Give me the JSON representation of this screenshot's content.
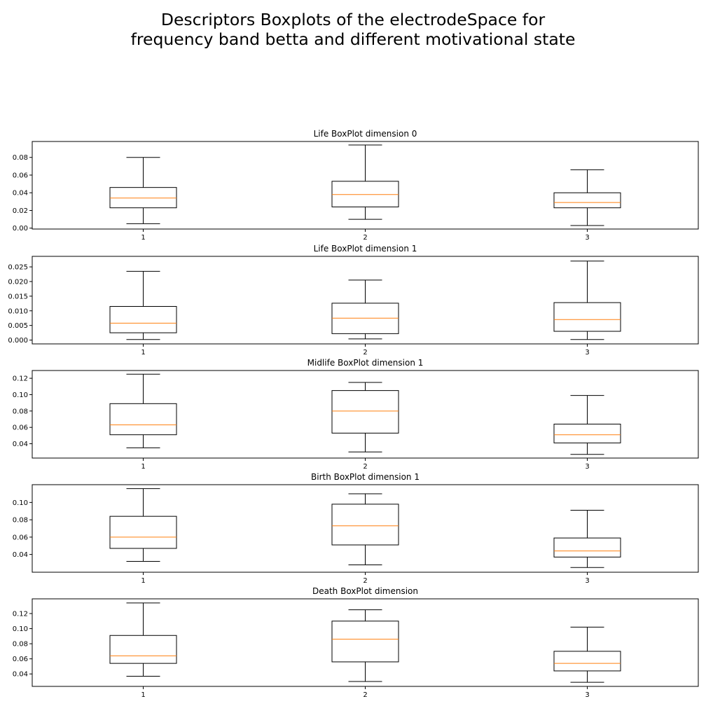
{
  "figure": {
    "title_line1": "Descriptors Boxplots of the electrodeSpace for",
    "title_line2": "frequency band betta and different motivational state"
  },
  "colors": {
    "box": "#000000",
    "median": "#ff7f0e",
    "background": "#ffffff"
  },
  "chart_data": [
    {
      "type": "boxplot",
      "title": "Life BoxPlot dimension 0",
      "categories": [
        "1",
        "2",
        "3"
      ],
      "ylim": [
        -0.001,
        0.098
      ],
      "yticks": [
        0.0,
        0.02,
        0.04,
        0.06,
        0.08
      ],
      "ytick_labels": [
        "0.00",
        "0.02",
        "0.04",
        "0.06",
        "0.08"
      ],
      "boxes": [
        {
          "whislo": 0.005,
          "q1": 0.023,
          "med": 0.034,
          "q3": 0.046,
          "whishi": 0.08
        },
        {
          "whislo": 0.01,
          "q1": 0.024,
          "med": 0.038,
          "q3": 0.053,
          "whishi": 0.094
        },
        {
          "whislo": 0.003,
          "q1": 0.023,
          "med": 0.029,
          "q3": 0.04,
          "whishi": 0.066
        }
      ]
    },
    {
      "type": "boxplot",
      "title": "Life BoxPlot dimension 1",
      "categories": [
        "1",
        "2",
        "3"
      ],
      "ylim": [
        -0.0013,
        0.0286
      ],
      "yticks": [
        0.0,
        0.005,
        0.01,
        0.015,
        0.02,
        0.025
      ],
      "ytick_labels": [
        "0.000",
        "0.005",
        "0.010",
        "0.015",
        "0.020",
        "0.025"
      ],
      "boxes": [
        {
          "whislo": 0.0002,
          "q1": 0.0025,
          "med": 0.0058,
          "q3": 0.0115,
          "whishi": 0.0235
        },
        {
          "whislo": 0.0004,
          "q1": 0.0022,
          "med": 0.0075,
          "q3": 0.0126,
          "whishi": 0.0205
        },
        {
          "whislo": 0.0002,
          "q1": 0.003,
          "med": 0.007,
          "q3": 0.0128,
          "whishi": 0.027
        }
      ]
    },
    {
      "type": "boxplot",
      "title": "Midlife BoxPlot dimension 1",
      "categories": [
        "1",
        "2",
        "3"
      ],
      "ylim": [
        0.0225,
        0.1295
      ],
      "yticks": [
        0.04,
        0.06,
        0.08,
        0.1,
        0.12
      ],
      "ytick_labels": [
        "0.04",
        "0.06",
        "0.08",
        "0.10",
        "0.12"
      ],
      "boxes": [
        {
          "whislo": 0.035,
          "q1": 0.051,
          "med": 0.063,
          "q3": 0.089,
          "whishi": 0.125
        },
        {
          "whislo": 0.03,
          "q1": 0.053,
          "med": 0.08,
          "q3": 0.105,
          "whishi": 0.115
        },
        {
          "whislo": 0.027,
          "q1": 0.041,
          "med": 0.051,
          "q3": 0.064,
          "whishi": 0.099
        }
      ]
    },
    {
      "type": "boxplot",
      "title": "Birth BoxPlot dimension 1",
      "categories": [
        "1",
        "2",
        "3"
      ],
      "ylim": [
        0.0195,
        0.1205
      ],
      "yticks": [
        0.04,
        0.06,
        0.08,
        0.1
      ],
      "ytick_labels": [
        "0.04",
        "0.06",
        "0.08",
        "0.10"
      ],
      "boxes": [
        {
          "whislo": 0.032,
          "q1": 0.047,
          "med": 0.06,
          "q3": 0.084,
          "whishi": 0.116
        },
        {
          "whislo": 0.028,
          "q1": 0.051,
          "med": 0.073,
          "q3": 0.098,
          "whishi": 0.11
        },
        {
          "whislo": 0.025,
          "q1": 0.037,
          "med": 0.044,
          "q3": 0.059,
          "whishi": 0.091
        }
      ]
    },
    {
      "type": "boxplot",
      "title": "Death BoxPlot dimension",
      "categories": [
        "1",
        "2",
        "3"
      ],
      "ylim": [
        0.0235,
        0.1395
      ],
      "yticks": [
        0.04,
        0.06,
        0.08,
        0.1,
        0.12
      ],
      "ytick_labels": [
        "0.04",
        "0.06",
        "0.08",
        "0.10",
        "0.12"
      ],
      "boxes": [
        {
          "whislo": 0.037,
          "q1": 0.054,
          "med": 0.064,
          "q3": 0.091,
          "whishi": 0.134
        },
        {
          "whislo": 0.03,
          "q1": 0.056,
          "med": 0.086,
          "q3": 0.11,
          "whishi": 0.125
        },
        {
          "whislo": 0.029,
          "q1": 0.044,
          "med": 0.054,
          "q3": 0.07,
          "whishi": 0.102
        }
      ]
    }
  ]
}
